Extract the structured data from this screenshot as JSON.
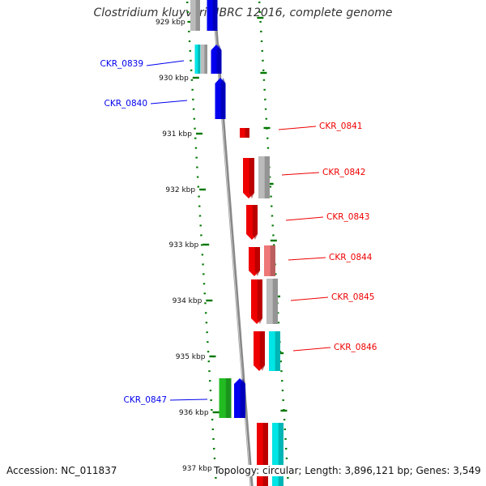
{
  "title": "Clostridium kluyveri NBRC 12016, complete genome",
  "footer": {
    "accession": "Accession: NC_011837",
    "summary": "Topology: circular; Length: 3,896,121 bp; Genes: 3,549"
  },
  "ticks": [
    {
      "label": "929 kbp"
    },
    {
      "label": "930 kbp"
    },
    {
      "label": "931 kbp"
    },
    {
      "label": "932 kbp"
    },
    {
      "label": "933 kbp"
    },
    {
      "label": "934 kbp"
    },
    {
      "label": "935 kbp"
    },
    {
      "label": "936 kbp"
    },
    {
      "label": "937 kbp"
    }
  ],
  "gene_labels": [
    {
      "label": "CKR_0839",
      "strand": "minus"
    },
    {
      "label": "CKR_0840",
      "strand": "minus"
    },
    {
      "label": "CKR_0841",
      "strand": "plus"
    },
    {
      "label": "CKR_0842",
      "strand": "plus"
    },
    {
      "label": "CKR_0843",
      "strand": "plus"
    },
    {
      "label": "CKR_0844",
      "strand": "plus"
    },
    {
      "label": "CKR_0845",
      "strand": "plus"
    },
    {
      "label": "CKR_0846",
      "strand": "plus"
    },
    {
      "label": "CKR_0847",
      "strand": "minus"
    }
  ],
  "colors": {
    "minus_strand": "#0000ee",
    "plus_strand": "#ee0000",
    "backbone": "#888888",
    "ticks": "#007700",
    "gray_feature": "#bbbbbb",
    "cyan_feature": "#00e5e5",
    "green_feature": "#22bb22",
    "pink_feature": "#ee7777"
  }
}
